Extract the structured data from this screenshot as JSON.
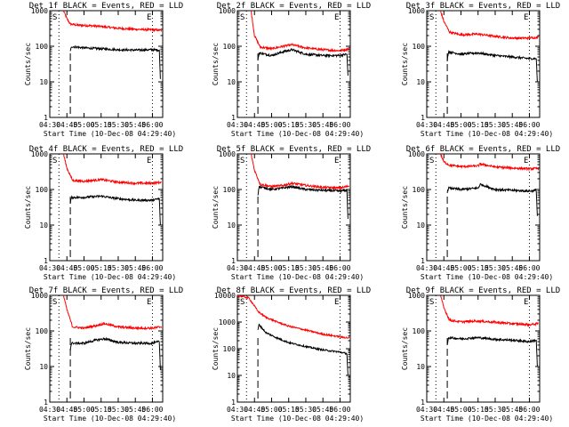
{
  "colors": {
    "events": "#000000",
    "lld": "#ff0000",
    "background": "#ffffff",
    "axis": "#000000"
  },
  "chart_data": {
    "type": "line",
    "grid": false,
    "y_scale": "log",
    "ylabel": "Counts/sec",
    "xlabel": "Start Time (10-Dec-08 04:29:40)",
    "x_tick_labels": [
      "04:30",
      "04:45",
      "05:00",
      "05:15",
      "05:30",
      "05:45",
      "06:00"
    ],
    "y_tick_labels": [
      "1",
      "10",
      "100",
      "1000"
    ],
    "y_tick_labels_det8": [
      "1",
      "10",
      "100",
      "1000",
      "10000"
    ],
    "xlim": [
      "04:30",
      "06:09"
    ],
    "marker_labels": {
      "start": "S",
      "end": "E"
    },
    "markers": {
      "dotted_start": "04:38",
      "dashed_start": "04:48",
      "dotted_end": "06:00"
    },
    "panels": [
      {
        "title": "Det 1f BLACK = Events, RED = LLD",
        "ylim": [
          1,
          1000
        ],
        "series": [
          {
            "name": "LLD",
            "color": "#ff0000",
            "x": [
              "04:42",
              "04:45",
              "04:48",
              "04:55",
              "05:05",
              "05:15",
              "05:30",
              "05:45",
              "06:00",
              "06:08"
            ],
            "y": [
              1000,
              600,
              420,
              390,
              380,
              360,
              320,
              300,
              290,
              280
            ]
          },
          {
            "name": "Events",
            "color": "#000000",
            "x": [
              "04:48",
              "04:49",
              "05:00",
              "05:15",
              "05:30",
              "05:45",
              "06:00",
              "06:06",
              "06:07"
            ],
            "y": [
              70,
              98,
              90,
              85,
              80,
              78,
              80,
              78,
              12
            ]
          }
        ]
      },
      {
        "title": "Det 2f BLACK = Events, RED = LLD",
        "ylim": [
          1,
          1000
        ],
        "series": [
          {
            "name": "LLD",
            "color": "#ff0000",
            "x": [
              "04:42",
              "04:45",
              "04:50",
              "05:00",
              "05:10",
              "05:18",
              "05:30",
              "05:45",
              "06:00",
              "06:08"
            ],
            "y": [
              1000,
              200,
              95,
              85,
              100,
              110,
              90,
              80,
              75,
              85
            ]
          },
          {
            "name": "Events",
            "color": "#000000",
            "x": [
              "04:48",
              "04:49",
              "05:00",
              "05:10",
              "05:18",
              "05:30",
              "05:45",
              "06:00",
              "06:06",
              "06:07"
            ],
            "y": [
              40,
              65,
              55,
              70,
              80,
              60,
              55,
              55,
              60,
              15
            ]
          }
        ]
      },
      {
        "title": "Det 3f BLACK = Events, RED = LLD",
        "ylim": [
          1,
          1000
        ],
        "series": [
          {
            "name": "LLD",
            "color": "#ff0000",
            "x": [
              "04:42",
              "04:45",
              "04:50",
              "05:00",
              "05:15",
              "05:30",
              "05:45",
              "06:00",
              "06:08"
            ],
            "y": [
              1000,
              500,
              250,
              210,
              220,
              190,
              170,
              170,
              180
            ]
          },
          {
            "name": "Events",
            "color": "#000000",
            "x": [
              "04:48",
              "04:49",
              "05:00",
              "05:15",
              "05:30",
              "05:45",
              "06:00",
              "06:06",
              "06:07"
            ],
            "y": [
              40,
              70,
              60,
              65,
              55,
              50,
              45,
              45,
              10
            ]
          }
        ]
      },
      {
        "title": "Det 4f BLACK = Events, RED = LLD",
        "ylim": [
          1,
          1000
        ],
        "series": [
          {
            "name": "LLD",
            "color": "#ff0000",
            "x": [
              "04:42",
              "04:45",
              "04:50",
              "05:00",
              "05:15",
              "05:30",
              "05:45",
              "06:00",
              "06:08"
            ],
            "y": [
              1000,
              400,
              180,
              170,
              190,
              160,
              150,
              150,
              160
            ]
          },
          {
            "name": "Events",
            "color": "#000000",
            "x": [
              "04:48",
              "04:49",
              "05:00",
              "05:15",
              "05:30",
              "05:45",
              "06:00",
              "06:06",
              "06:07"
            ],
            "y": [
              40,
              60,
              60,
              65,
              55,
              50,
              50,
              55,
              10
            ]
          }
        ]
      },
      {
        "title": "Det 5f BLACK = Events, RED = LLD",
        "ylim": [
          1,
          1000
        ],
        "series": [
          {
            "name": "LLD",
            "color": "#ff0000",
            "x": [
              "04:42",
              "04:45",
              "04:50",
              "05:00",
              "05:10",
              "05:18",
              "05:30",
              "05:45",
              "06:00",
              "06:08"
            ],
            "y": [
              1000,
              350,
              140,
              120,
              130,
              150,
              130,
              115,
              110,
              125
            ]
          },
          {
            "name": "Events",
            "color": "#000000",
            "x": [
              "04:48",
              "04:49",
              "05:00",
              "05:10",
              "05:18",
              "05:30",
              "05:45",
              "06:00",
              "06:06",
              "06:07"
            ],
            "y": [
              70,
              120,
              100,
              110,
              120,
              100,
              95,
              90,
              95,
              15
            ]
          }
        ]
      },
      {
        "title": "Det 6f BLACK = Events, RED = LLD",
        "ylim": [
          1,
          1000
        ],
        "series": [
          {
            "name": "LLD",
            "color": "#ff0000",
            "x": [
              "04:42",
              "04:45",
              "04:50",
              "05:00",
              "05:15",
              "05:17",
              "05:30",
              "05:45",
              "06:00",
              "06:08"
            ],
            "y": [
              1000,
              600,
              480,
              440,
              460,
              520,
              430,
              400,
              380,
              390
            ]
          },
          {
            "name": "Events",
            "color": "#000000",
            "x": [
              "04:48",
              "04:49",
              "05:00",
              "05:15",
              "05:17",
              "05:30",
              "05:45",
              "06:00",
              "06:06",
              "06:07"
            ],
            "y": [
              80,
              110,
              100,
              110,
              140,
              100,
              95,
              90,
              95,
              18
            ]
          }
        ]
      },
      {
        "title": "Det 7f BLACK = Events, RED = LLD",
        "ylim": [
          1,
          1000
        ],
        "series": [
          {
            "name": "LLD",
            "color": "#ff0000",
            "x": [
              "04:42",
              "04:45",
              "04:50",
              "05:00",
              "05:10",
              "05:18",
              "05:30",
              "05:45",
              "06:00",
              "06:08"
            ],
            "y": [
              1000,
              400,
              130,
              120,
              140,
              160,
              130,
              120,
              120,
              130
            ]
          },
          {
            "name": "Events",
            "color": "#000000",
            "x": [
              "04:48",
              "04:49",
              "05:00",
              "05:10",
              "05:18",
              "05:30",
              "05:45",
              "06:00",
              "06:06",
              "06:07"
            ],
            "y": [
              30,
              45,
              45,
              55,
              60,
              48,
              45,
              45,
              50,
              8
            ]
          }
        ]
      },
      {
        "title": "Det 8f BLACK = Events, RED = LLD",
        "ylim": [
          1,
          10000
        ],
        "series": [
          {
            "name": "LLD",
            "color": "#ff0000",
            "x": [
              "04:30",
              "04:40",
              "04:45",
              "04:48",
              "04:55",
              "05:05",
              "05:15",
              "05:30",
              "05:45",
              "06:00",
              "06:08"
            ],
            "y": [
              10000,
              8000,
              4000,
              2500,
              1500,
              1000,
              700,
              500,
              350,
              280,
              250
            ]
          },
          {
            "name": "Events",
            "color": "#000000",
            "x": [
              "04:48",
              "04:49",
              "04:55",
              "05:05",
              "05:15",
              "05:30",
              "05:45",
              "06:00",
              "06:06",
              "06:07"
            ],
            "y": [
              500,
              800,
              400,
              250,
              170,
              120,
              90,
              75,
              65,
              10
            ]
          }
        ]
      },
      {
        "title": "Det 9f BLACK = Events, RED = LLD",
        "ylim": [
          1,
          1000
        ],
        "series": [
          {
            "name": "LLD",
            "color": "#ff0000",
            "x": [
              "04:42",
              "04:45",
              "04:50",
              "05:00",
              "05:15",
              "05:30",
              "05:45",
              "06:00",
              "06:08"
            ],
            "y": [
              1000,
              450,
              200,
              180,
              190,
              175,
              160,
              150,
              160
            ]
          },
          {
            "name": "Events",
            "color": "#000000",
            "x": [
              "04:48",
              "04:49",
              "05:00",
              "05:15",
              "05:30",
              "05:45",
              "06:00",
              "06:06",
              "06:07"
            ],
            "y": [
              40,
              65,
              60,
              65,
              58,
              55,
              50,
              55,
              10
            ]
          }
        ]
      }
    ]
  }
}
